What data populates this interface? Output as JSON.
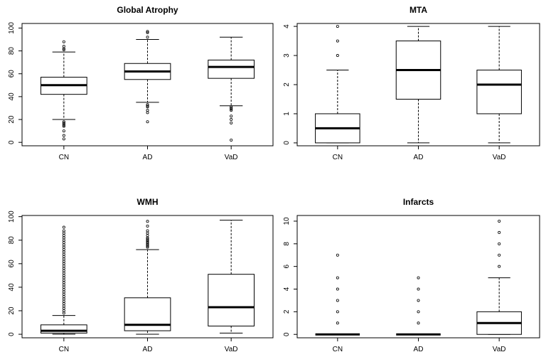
{
  "chart_data": [
    {
      "type": "box",
      "title": "Global Atrophy",
      "categories": [
        "CN",
        "AD",
        "VaD"
      ],
      "ylim": [
        -3,
        104
      ],
      "yticks": [
        0,
        20,
        40,
        60,
        80,
        100
      ],
      "boxes": [
        {
          "name": "CN",
          "q1": 42,
          "median": 50,
          "q3": 57,
          "whisker_low": 20,
          "whisker_high": 79,
          "outliers": [
            3,
            6,
            10,
            14,
            15,
            16,
            17,
            18,
            81,
            82,
            84,
            88
          ]
        },
        {
          "name": "AD",
          "q1": 55,
          "median": 62,
          "q3": 69,
          "whisker_low": 35,
          "whisker_high": 90,
          "outliers": [
            18,
            26,
            28,
            31,
            32,
            33,
            92,
            96,
            97
          ]
        },
        {
          "name": "VaD",
          "q1": 56,
          "median": 66,
          "q3": 72,
          "whisker_low": 32,
          "whisker_high": 92,
          "outliers": [
            2,
            17,
            20,
            23,
            28,
            29,
            30,
            31
          ]
        }
      ]
    },
    {
      "type": "box",
      "title": "MTA",
      "categories": [
        "CN",
        "AD",
        "VaD"
      ],
      "ylim": [
        -0.1,
        4.1
      ],
      "yticks": [
        0,
        1,
        2,
        3,
        4
      ],
      "boxes": [
        {
          "name": "CN",
          "q1": 0,
          "median": 0.5,
          "q3": 1,
          "whisker_low": 0,
          "whisker_high": 2.5,
          "outliers": [
            3,
            3.5,
            4
          ]
        },
        {
          "name": "AD",
          "q1": 1.5,
          "median": 2.5,
          "q3": 3.5,
          "whisker_low": 0,
          "whisker_high": 4,
          "outliers": []
        },
        {
          "name": "VaD",
          "q1": 1,
          "median": 2,
          "q3": 2.5,
          "whisker_low": 0,
          "whisker_high": 4,
          "outliers": []
        }
      ]
    },
    {
      "type": "box",
      "title": "WMH",
      "categories": [
        "CN",
        "AD",
        "VaD"
      ],
      "ylim": [
        -3,
        101
      ],
      "yticks": [
        0,
        20,
        40,
        60,
        80,
        100
      ],
      "boxes": [
        {
          "name": "CN",
          "q1": 1,
          "median": 3,
          "q3": 8,
          "whisker_low": 0,
          "whisker_high": 16,
          "outliers": [
            18,
            20,
            22,
            24,
            26,
            28,
            30,
            32,
            34,
            36,
            38,
            40,
            42,
            44,
            46,
            48,
            50,
            52,
            54,
            56,
            58,
            60,
            62,
            64,
            66,
            68,
            70,
            72,
            74,
            76,
            78,
            80,
            82,
            84,
            86,
            88,
            91
          ]
        },
        {
          "name": "AD",
          "q1": 3,
          "median": 8,
          "q3": 31,
          "whisker_low": 0,
          "whisker_high": 72,
          "outliers": [
            74,
            75,
            76,
            77,
            78,
            79,
            80,
            81,
            82,
            84,
            86,
            88,
            92,
            96
          ]
        },
        {
          "name": "VaD",
          "q1": 7,
          "median": 23,
          "q3": 51,
          "whisker_low": 1,
          "whisker_high": 97,
          "outliers": []
        }
      ]
    },
    {
      "type": "box",
      "title": "Infarcts",
      "categories": [
        "CN",
        "AD",
        "VaD"
      ],
      "ylim": [
        -0.3,
        10.5
      ],
      "yticks": [
        0,
        2,
        4,
        6,
        8,
        10
      ],
      "boxes": [
        {
          "name": "CN",
          "q1": 0,
          "median": 0,
          "q3": 0,
          "whisker_low": 0,
          "whisker_high": 0,
          "outliers": [
            1,
            2,
            3,
            4,
            5,
            7
          ]
        },
        {
          "name": "AD",
          "q1": 0,
          "median": 0,
          "q3": 0,
          "whisker_low": 0,
          "whisker_high": 0,
          "outliers": [
            1,
            2,
            3,
            4,
            5
          ]
        },
        {
          "name": "VaD",
          "q1": 0,
          "median": 1,
          "q3": 2,
          "whisker_low": 0,
          "whisker_high": 5,
          "outliers": [
            6,
            7,
            8,
            9,
            10
          ]
        }
      ]
    }
  ]
}
